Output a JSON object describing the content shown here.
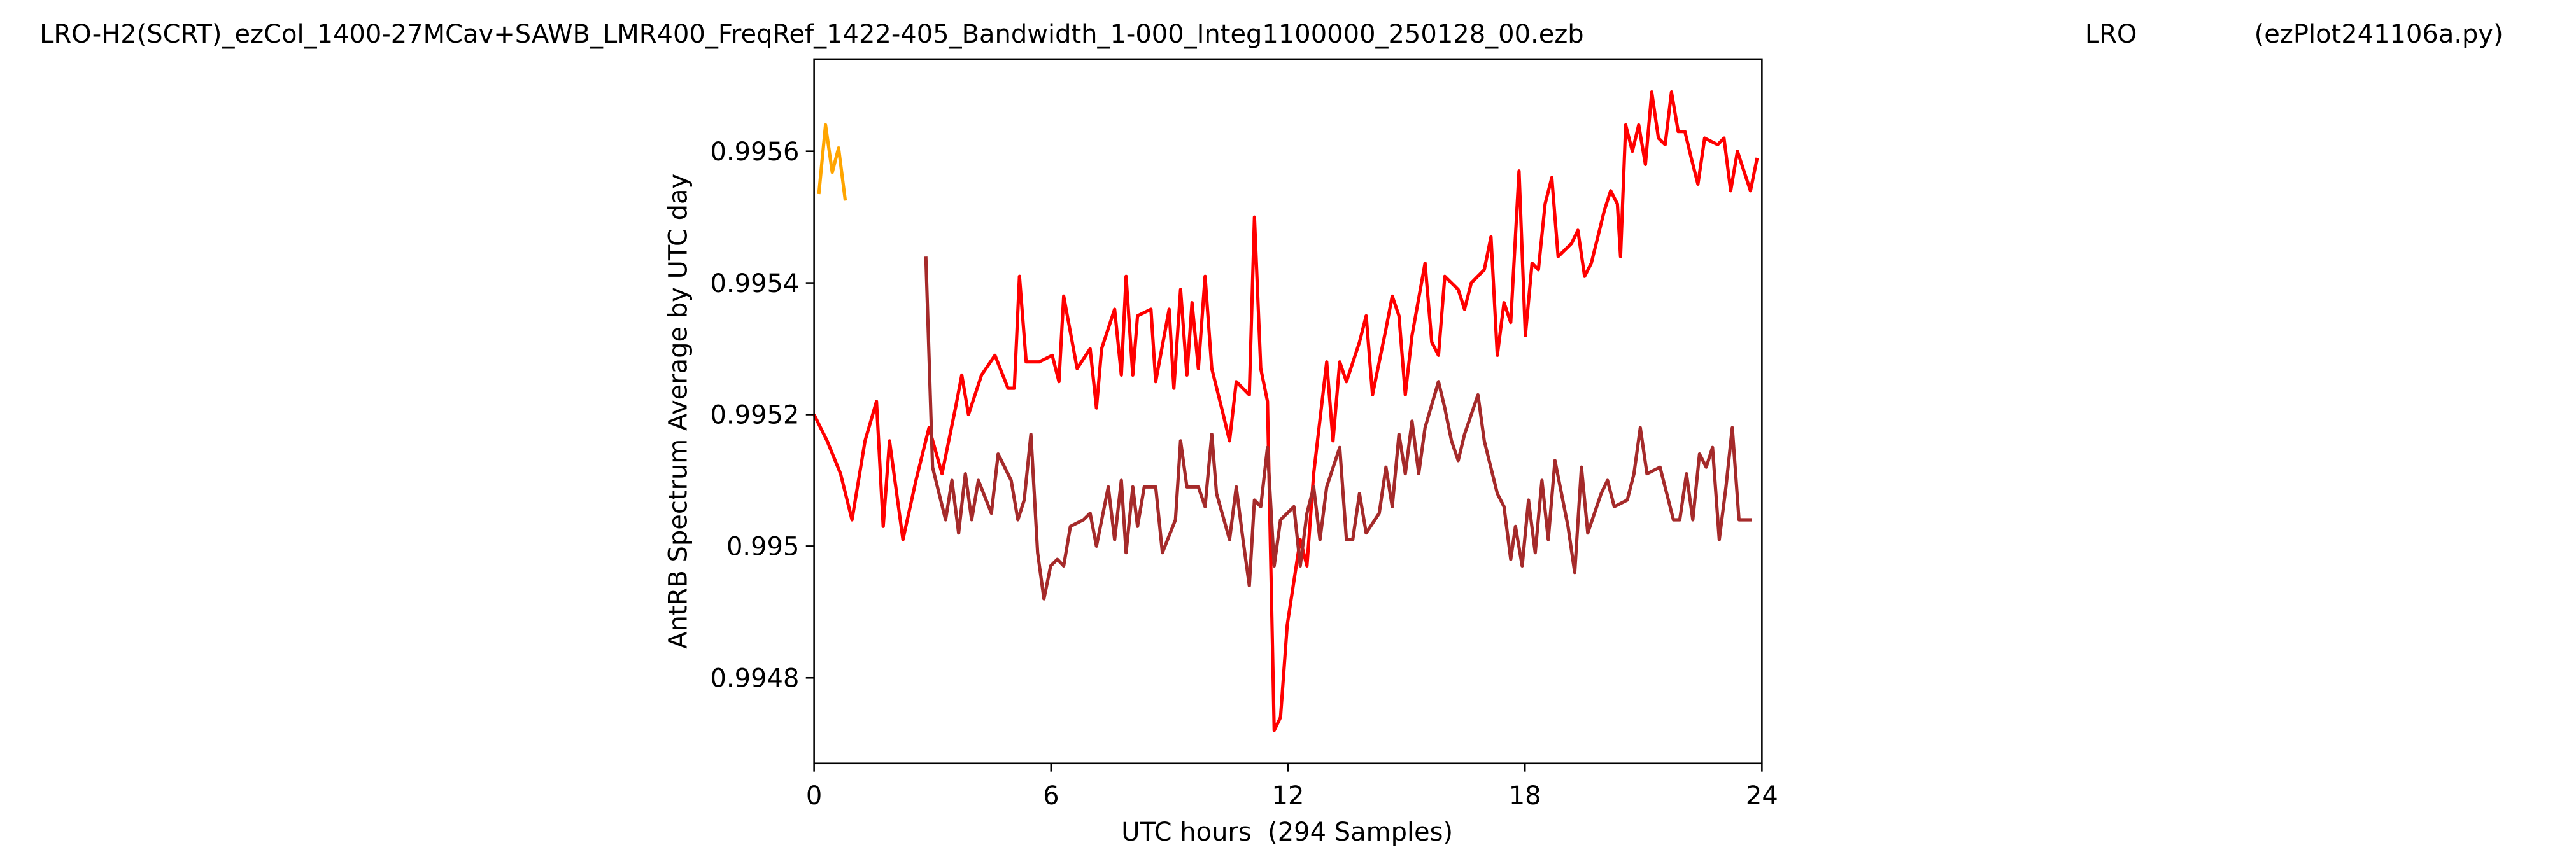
{
  "chart_data": {
    "type": "line",
    "title": "LRO-H2(SCRT)_ezCol_1400-27MCav+SAWB_LMR400_FreqRef_1422-405_Bandwidth_1-000_Integ1100000_250128_00.ezb",
    "station": "LRO",
    "program": "(ezPlot241106a.py)",
    "xlabel": "UTC hours  (294 Samples)",
    "ylabel": "AntRB Spectrum Average by UTC day",
    "xlim": [
      0,
      24
    ],
    "xticks": [
      0,
      6,
      12,
      18,
      24
    ],
    "ylim": [
      0.99467,
      0.99574
    ],
    "yticks": [
      0.9948,
      0.995,
      0.9952,
      0.9954,
      0.9956
    ],
    "grid": false,
    "series": [
      {
        "color": "#ffa500",
        "x": [
          0.12,
          0.29,
          0.46,
          0.62,
          0.79
        ],
        "values": [
          0.995535,
          0.99564,
          0.995568,
          0.995605,
          0.995525
        ]
      },
      {
        "color": "#ff0000",
        "x": [
          0,
          0.33,
          0.67,
          0.96,
          1.29,
          1.58,
          1.75,
          1.91,
          2.25,
          2.58,
          2.91,
          3.24,
          3.58,
          3.74,
          3.91,
          4.24,
          4.58,
          4.91,
          5.07,
          5.2,
          5.37,
          5.7,
          6.03,
          6.2,
          6.32,
          6.66,
          6.99,
          7.15,
          7.28,
          7.61,
          7.78,
          7.9,
          8.07,
          8.19,
          8.53,
          8.65,
          8.99,
          9.11,
          9.28,
          9.44,
          9.57,
          9.73,
          9.9,
          10.07,
          10.36,
          10.52,
          10.69,
          11.02,
          11.15,
          11.31,
          11.48,
          11.65,
          11.81,
          11.98,
          12.31,
          12.48,
          12.65,
          12.98,
          13.14,
          13.31,
          13.48,
          13.81,
          13.98,
          14.14,
          14.48,
          14.64,
          14.81,
          14.97,
          15.14,
          15.47,
          15.64,
          15.81,
          15.97,
          16.31,
          16.47,
          16.64,
          16.97,
          17.14,
          17.3,
          17.47,
          17.64,
          17.85,
          18.01,
          18.18,
          18.34,
          18.51,
          18.68,
          18.84,
          19.18,
          19.34,
          19.51,
          19.68,
          20.01,
          20.17,
          20.34,
          20.42,
          20.55,
          20.72,
          20.88,
          21.05,
          21.21,
          21.38,
          21.55,
          21.71,
          21.88,
          22.05,
          22.21,
          22.38,
          22.55,
          22.88,
          23.04,
          23.21,
          23.38,
          23.71,
          23.88
        ],
        "values": [
          0.9952,
          0.99516,
          0.99511,
          0.99504,
          0.99516,
          0.99522,
          0.99503,
          0.99516,
          0.99501,
          0.9951,
          0.99518,
          0.99511,
          0.99521,
          0.99526,
          0.9952,
          0.99526,
          0.99529,
          0.99524,
          0.99524,
          0.99541,
          0.99528,
          0.99528,
          0.99529,
          0.99525,
          0.99538,
          0.99527,
          0.9953,
          0.99521,
          0.9953,
          0.99536,
          0.99526,
          0.99541,
          0.99526,
          0.99535,
          0.99536,
          0.99525,
          0.99536,
          0.99524,
          0.99539,
          0.99526,
          0.99537,
          0.99527,
          0.99541,
          0.99527,
          0.9952,
          0.99516,
          0.99525,
          0.99523,
          0.9955,
          0.99527,
          0.99522,
          0.99472,
          0.99474,
          0.99488,
          0.99501,
          0.99497,
          0.99511,
          0.99528,
          0.99516,
          0.99528,
          0.99525,
          0.99531,
          0.99535,
          0.99523,
          0.99533,
          0.99538,
          0.99535,
          0.99523,
          0.99532,
          0.99543,
          0.99531,
          0.99529,
          0.99541,
          0.99539,
          0.99536,
          0.9954,
          0.99542,
          0.99547,
          0.99529,
          0.99537,
          0.99534,
          0.99557,
          0.99532,
          0.99543,
          0.99542,
          0.99552,
          0.99556,
          0.99544,
          0.99546,
          0.99548,
          0.99541,
          0.99543,
          0.99551,
          0.99554,
          0.99552,
          0.99544,
          0.99564,
          0.9956,
          0.99564,
          0.99558,
          0.99569,
          0.99562,
          0.99561,
          0.99569,
          0.99563,
          0.99563,
          0.99559,
          0.99555,
          0.99562,
          0.99561,
          0.99562,
          0.99554,
          0.9956,
          0.99554,
          0.99559
        ]
      },
      {
        "color": "#a52a2a",
        "x": [
          2.83,
          3.0,
          3.33,
          3.49,
          3.66,
          3.83,
          3.99,
          4.16,
          4.49,
          4.66,
          4.99,
          5.16,
          5.32,
          5.49,
          5.66,
          5.82,
          5.99,
          6.16,
          6.32,
          6.49,
          6.82,
          6.99,
          7.15,
          7.45,
          7.61,
          7.78,
          7.9,
          8.07,
          8.19,
          8.36,
          8.65,
          8.82,
          9.15,
          9.28,
          9.44,
          9.73,
          9.9,
          10.07,
          10.19,
          10.52,
          10.69,
          10.86,
          11.02,
          11.15,
          11.31,
          11.48,
          11.65,
          11.81,
          12.15,
          12.31,
          12.48,
          12.65,
          12.81,
          12.98,
          13.31,
          13.48,
          13.64,
          13.81,
          13.98,
          14.31,
          14.48,
          14.64,
          14.81,
          14.97,
          15.14,
          15.31,
          15.47,
          15.81,
          15.97,
          16.14,
          16.31,
          16.47,
          16.81,
          16.97,
          17.3,
          17.47,
          17.64,
          17.76,
          17.93,
          18.09,
          18.26,
          18.43,
          18.59,
          18.76,
          19.09,
          19.26,
          19.43,
          19.59,
          19.93,
          20.09,
          20.26,
          20.59,
          20.76,
          20.92,
          21.09,
          21.42,
          21.76,
          21.92,
          22.09,
          22.25,
          22.42,
          22.59,
          22.75,
          22.92,
          23.09,
          23.25,
          23.42,
          23.75
        ],
        "values": [
          0.99544,
          0.99512,
          0.99504,
          0.9951,
          0.99502,
          0.99511,
          0.99504,
          0.9951,
          0.99505,
          0.99514,
          0.9951,
          0.99504,
          0.99507,
          0.99517,
          0.99499,
          0.99492,
          0.99497,
          0.99498,
          0.99497,
          0.99503,
          0.99504,
          0.99505,
          0.995,
          0.99509,
          0.99501,
          0.9951,
          0.99499,
          0.99509,
          0.99503,
          0.99509,
          0.99509,
          0.99499,
          0.99504,
          0.99516,
          0.99509,
          0.99509,
          0.99506,
          0.99517,
          0.99508,
          0.99501,
          0.99509,
          0.99501,
          0.99494,
          0.99507,
          0.99506,
          0.99515,
          0.99497,
          0.99504,
          0.99506,
          0.99497,
          0.99505,
          0.99509,
          0.99501,
          0.99509,
          0.99515,
          0.99501,
          0.99501,
          0.99508,
          0.99502,
          0.99505,
          0.99512,
          0.99506,
          0.99517,
          0.99511,
          0.99519,
          0.99511,
          0.99518,
          0.99525,
          0.99521,
          0.99516,
          0.99513,
          0.99517,
          0.99523,
          0.99516,
          0.99508,
          0.99506,
          0.99498,
          0.99503,
          0.99497,
          0.99507,
          0.99499,
          0.9951,
          0.99501,
          0.99513,
          0.99503,
          0.99496,
          0.99512,
          0.99502,
          0.99508,
          0.9951,
          0.99506,
          0.99507,
          0.99511,
          0.99518,
          0.99511,
          0.99512,
          0.99504,
          0.99504,
          0.99511,
          0.99504,
          0.99514,
          0.99512,
          0.99515,
          0.99501,
          0.99509,
          0.99518,
          0.99504,
          0.99504
        ]
      }
    ]
  }
}
